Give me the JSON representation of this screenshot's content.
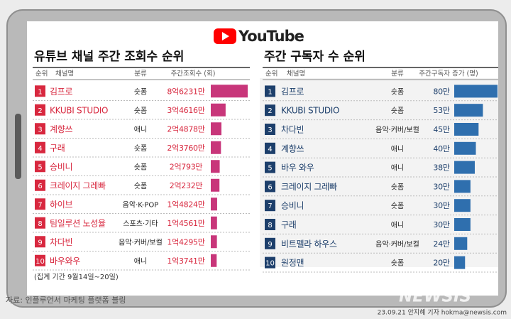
{
  "logo": "YouTube",
  "chart_data": [
    {
      "type": "bar",
      "title": "유튜브 채널 주간 조회수 순위",
      "columns": [
        "순위",
        "채널명",
        "분류",
        "주간조회수 (회)"
      ],
      "ranks": [
        1,
        2,
        3,
        4,
        5,
        6,
        7,
        8,
        9,
        10
      ],
      "categories": [
        "김프로",
        "KKUBI STUDIO",
        "계향쓰",
        "구래",
        "승비니",
        "크레이지 그레빠",
        "하이브",
        "팀일루션 노성율",
        "차다빈",
        "바우와우"
      ],
      "genres": [
        "숏폼",
        "숏폼",
        "애니",
        "숏폼",
        "숏폼",
        "숏폼",
        "음악·K-POP",
        "스포츠·기타",
        "음악·커버/보컬",
        "애니"
      ],
      "values": [
        862310000,
        346160000,
        248780000,
        237600000,
        207930000,
        202320000,
        148240000,
        145610000,
        142950000,
        137410000
      ],
      "value_labels": [
        "8억6231만",
        "3억4616만",
        "2억4878만",
        "2억3760만",
        "2억793만",
        "2억232만",
        "1억4824만",
        "1억4561만",
        "1억4295만",
        "1억3741만"
      ],
      "color": "#c8367a",
      "rank_color": "#d8283f",
      "label_color": "#d8283f"
    },
    {
      "type": "bar",
      "title": "주간 구독자 수 순위",
      "columns": [
        "순위",
        "채널명",
        "분류",
        "주간구독자 증가 (명)"
      ],
      "ranks": [
        1,
        2,
        3,
        4,
        5,
        6,
        7,
        8,
        9,
        10
      ],
      "categories": [
        "김프로",
        "KKUBI STUDIO",
        "차다빈",
        "계향쓰",
        "바우 와우",
        "크레이지 그레빠",
        "승비니",
        "구래",
        "비트펠라 하우스",
        "원정맨"
      ],
      "genres": [
        "숏폼",
        "숏폼",
        "음악·커버/보컬",
        "애니",
        "애니",
        "숏폼",
        "숏폼",
        "애니",
        "음악·커버/보컬",
        "숏폼"
      ],
      "values": [
        800000,
        530000,
        450000,
        400000,
        380000,
        300000,
        300000,
        300000,
        240000,
        200000
      ],
      "value_labels": [
        "80만",
        "53만",
        "45만",
        "40만",
        "38만",
        "30만",
        "30만",
        "30만",
        "24만",
        "20만"
      ],
      "color": "#2f6fae",
      "rank_color": "#1d3f6b",
      "label_color": "#1d3f6b"
    }
  ],
  "period": "(집계 기간 9월14일~20일)",
  "source": "자료: 인플루언서 마케팅 플랫폼 블링",
  "credit": "23.09.21 안지혜 기자 hokma@newsis.com",
  "watermark": "NEWSIS"
}
